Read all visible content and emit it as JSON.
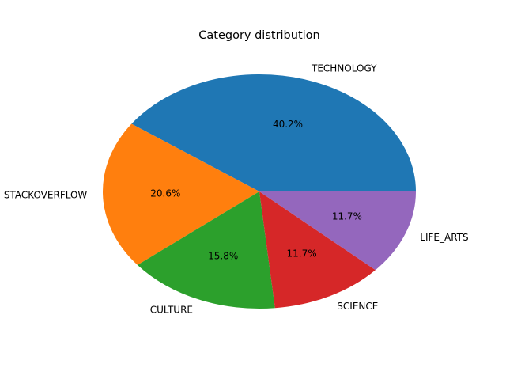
{
  "chart_data": {
    "type": "pie",
    "title": "Category distribution",
    "categories": [
      "TECHNOLOGY",
      "STACKOVERFLOW",
      "CULTURE",
      "SCIENCE",
      "LIFE_ARTS"
    ],
    "values": [
      40.2,
      20.6,
      15.8,
      11.7,
      11.7
    ],
    "percent_labels": [
      "40.2%",
      "20.6%",
      "15.8%",
      "11.7%",
      "11.7%"
    ],
    "colors": [
      "#1f77b4",
      "#ff7f0e",
      "#2ca02c",
      "#d62728",
      "#9467bd"
    ],
    "start_angle_deg": 0,
    "direction": "counterclockwise",
    "legend": "none"
  }
}
